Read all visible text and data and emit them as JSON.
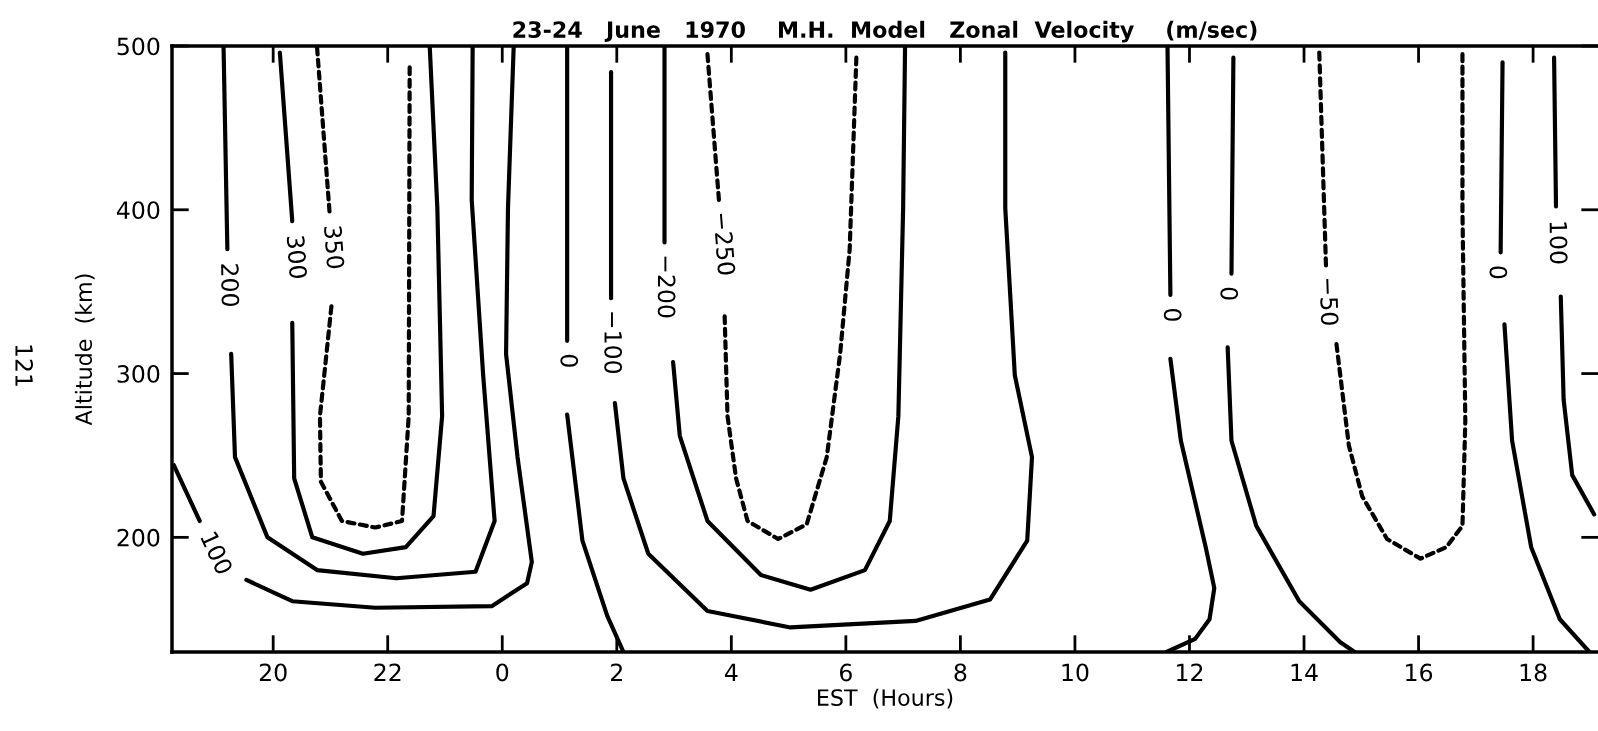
{
  "chart_data": {
    "type": "line",
    "title": "23-24   June   1970    M.H.  Model   Zonal  Velocity    (m/sec)",
    "xlabel": "EST  (Hours)",
    "ylabel": "Altitude  (km)",
    "xlim": [
      "1970-06-23T18:14",
      "1970-06-24T19:08"
    ],
    "ylim": [
      130,
      500
    ],
    "xticks": [
      {
        "value": "1970-06-23T20:00",
        "label": "20"
      },
      {
        "value": "1970-06-23T22:00",
        "label": "22"
      },
      {
        "value": "1970-06-24T00:00",
        "label": "0"
      },
      {
        "value": "1970-06-24T02:00",
        "label": "2"
      },
      {
        "value": "1970-06-24T04:00",
        "label": "4"
      },
      {
        "value": "1970-06-24T06:00",
        "label": "6"
      },
      {
        "value": "1970-06-24T08:00",
        "label": "8"
      },
      {
        "value": "1970-06-24T10:00",
        "label": "10"
      },
      {
        "value": "1970-06-24T12:00",
        "label": "12"
      },
      {
        "value": "1970-06-24T14:00",
        "label": "14"
      },
      {
        "value": "1970-06-24T16:00",
        "label": "16"
      },
      {
        "value": "1970-06-24T18:00",
        "label": "18"
      }
    ],
    "yticks": [
      200,
      300,
      400,
      500
    ],
    "grid": false,
    "series": [
      {
        "name": "100",
        "color": "#000000",
        "line_style": "solid",
        "x": [
          "1970-06-23T18:16",
          "1970-06-23T18:43"
        ],
        "values": [
          244,
          210
        ]
      },
      {
        "color": "#000000",
        "line_style": "solid",
        "x": [
          "1970-06-23T19:32",
          "1970-06-23T20:20",
          "1970-06-23T21:47",
          "1970-06-23T23:49",
          "1970-06-24T00:26",
          "1970-06-24T00:31",
          "1970-06-24T00:16",
          "1970-06-24T00:04",
          "1970-06-24T00:06",
          "1970-06-24T00:12"
        ],
        "values": [
          174,
          161,
          157,
          158,
          172,
          185,
          249,
          312,
          401,
          500
        ]
      },
      {
        "name": "200",
        "color": "#000000",
        "line_style": "solid",
        "x": [
          "1970-06-23T19:08",
          "1970-06-23T19:12"
        ],
        "values": [
          500,
          376
        ]
      },
      {
        "color": "#000000",
        "line_style": "solid",
        "x": [
          "1970-06-23T19:16",
          "1970-06-23T19:20",
          "1970-06-23T19:54",
          "1970-06-23T20:46",
          "1970-06-23T22:09",
          "1970-06-23T23:32",
          "1970-06-23T23:52",
          "1970-06-23T23:40",
          "1970-06-23T23:28",
          "1970-06-23T23:29"
        ],
        "values": [
          312,
          249,
          200,
          180,
          175,
          179,
          210,
          299,
          406,
          500
        ]
      },
      {
        "name": "300",
        "color": "#000000",
        "line_style": "solid",
        "x": [
          "1970-06-23T20:07",
          "1970-06-23T20:20"
        ],
        "values": [
          496,
          393
        ]
      },
      {
        "color": "#000000",
        "line_style": "solid",
        "x": [
          "1970-06-23T20:20",
          "1970-06-23T20:22",
          "1970-06-23T20:41",
          "1970-06-23T21:34",
          "1970-06-23T22:19",
          "1970-06-23T22:48",
          "1970-06-23T22:57",
          "1970-06-23T22:52",
          "1970-06-23T22:44"
        ],
        "values": [
          331,
          236,
          200,
          190,
          194,
          213,
          274,
          401,
          500
        ]
      },
      {
        "name": "350",
        "color": "#000000",
        "line_style": "dashed",
        "x": [
          "1970-06-23T20:46",
          "1970-06-23T20:59"
        ],
        "values": [
          499,
          399
        ]
      },
      {
        "color": "#000000",
        "line_style": "dashed",
        "x": [
          "1970-06-23T21:01",
          "1970-06-23T20:49",
          "1970-06-23T20:50",
          "1970-06-23T21:12",
          "1970-06-23T21:47",
          "1970-06-23T22:15",
          "1970-06-23T22:22",
          "1970-06-23T22:23"
        ],
        "values": [
          341,
          274,
          234,
          210,
          206,
          210,
          274,
          487
        ]
      },
      {
        "name": "0",
        "color": "#000000",
        "line_style": "solid",
        "x": [
          "1970-06-24T01:08",
          "1970-06-24T01:08"
        ],
        "values": [
          499,
          320
        ]
      },
      {
        "color": "#000000",
        "line_style": "solid",
        "x": [
          "1970-06-24T01:08",
          "1970-06-24T01:24",
          "1970-06-24T01:50",
          "1970-06-24T02:07"
        ],
        "values": [
          275,
          198,
          152,
          130
        ]
      },
      {
        "name": "−100",
        "color": "#000000",
        "line_style": "solid",
        "x": [
          "1970-06-24T01:54",
          "1970-06-24T01:54"
        ],
        "values": [
          484,
          346
        ]
      },
      {
        "color": "#000000",
        "line_style": "solid",
        "x": [
          "1970-06-24T01:58",
          "1970-06-24T02:07",
          "1970-06-24T02:33",
          "1970-06-24T03:35",
          "1970-06-24T05:02",
          "1970-06-24T07:13",
          "1970-06-24T08:31",
          "1970-06-24T09:10",
          "1970-06-24T09:15",
          "1970-06-24T08:57",
          "1970-06-24T08:47",
          "1970-06-24T08:47"
        ],
        "values": [
          282,
          236,
          190,
          155,
          145,
          149,
          162,
          198,
          249,
          299,
          401,
          496
        ]
      },
      {
        "name": "−200",
        "color": "#000000",
        "line_style": "solid",
        "x": [
          "1970-06-24T02:50",
          "1970-06-24T02:50"
        ],
        "values": [
          499,
          380
        ]
      },
      {
        "color": "#000000",
        "line_style": "solid",
        "x": [
          "1970-06-24T02:59",
          "1970-06-24T03:06",
          "1970-06-24T03:35",
          "1970-06-24T04:31",
          "1970-06-24T05:23",
          "1970-06-24T06:20",
          "1970-06-24T06:46",
          "1970-06-24T06:55",
          "1970-06-24T07:00",
          "1970-06-24T07:02"
        ],
        "values": [
          307,
          262,
          210,
          177,
          168,
          180,
          210,
          274,
          401,
          499
        ]
      },
      {
        "name": "−250",
        "color": "#000000",
        "line_style": "dashed",
        "x": [
          "1970-06-24T03:35",
          "1970-06-24T03:47"
        ],
        "values": [
          495,
          406
        ]
      },
      {
        "color": "#000000",
        "line_style": "dashed",
        "x": [
          "1970-06-24T03:53",
          "1970-06-24T03:56",
          "1970-06-24T04:05",
          "1970-06-24T04:17",
          "1970-06-24T04:49",
          "1970-06-24T05:19",
          "1970-06-24T05:40",
          "1970-06-24T05:54",
          "1970-06-24T06:04",
          "1970-06-24T06:11"
        ],
        "values": [
          335,
          274,
          236,
          210,
          199,
          208,
          249,
          312,
          376,
          493
        ]
      },
      {
        "name": "0",
        "color": "#000000",
        "line_style": "solid",
        "x": [
          "1970-06-24T11:37",
          "1970-06-24T11:40"
        ],
        "values": [
          499,
          348
        ]
      },
      {
        "color": "#000000",
        "line_style": "solid",
        "x": [
          "1970-06-24T11:40",
          "1970-06-24T11:51",
          "1970-06-24T12:17",
          "1970-06-24T12:26",
          "1970-06-24T12:21",
          "1970-06-24T12:06",
          "1970-06-24T11:36"
        ],
        "values": [
          309,
          259,
          194,
          169,
          150,
          138,
          130
        ]
      },
      {
        "name": "0",
        "color": "#000000",
        "line_style": "solid",
        "x": [
          "1970-06-24T12:46",
          "1970-06-24T12:44"
        ],
        "values": [
          493,
          361
        ]
      },
      {
        "color": "#000000",
        "line_style": "solid",
        "x": [
          "1970-06-24T12:40",
          "1970-06-24T12:44",
          "1970-06-24T13:10",
          "1970-06-24T13:55",
          "1970-06-24T14:38",
          "1970-06-24T14:53"
        ],
        "values": [
          316,
          259,
          207,
          161,
          136,
          130
        ]
      },
      {
        "name": "−50",
        "color": "#000000",
        "line_style": "dashed",
        "x": [
          "1970-06-24T14:16",
          "1970-06-24T14:23"
        ],
        "values": [
          496,
          366
        ]
      },
      {
        "color": "#000000",
        "line_style": "dashed",
        "x": [
          "1970-06-24T14:34",
          "1970-06-24T14:47",
          "1970-06-24T15:01",
          "1970-06-24T15:27",
          "1970-06-24T16:02",
          "1970-06-24T16:29",
          "1970-06-24T16:46",
          "1970-06-24T16:49",
          "1970-06-24T16:46",
          "1970-06-24T16:46"
        ],
        "values": [
          318,
          256,
          225,
          199,
          187,
          194,
          207,
          271,
          399,
          495
        ]
      },
      {
        "name": "0",
        "color": "#000000",
        "line_style": "solid",
        "x": [
          "1970-06-24T17:28",
          "1970-06-24T17:26"
        ],
        "values": [
          490,
          374
        ]
      },
      {
        "color": "#000000",
        "line_style": "solid",
        "x": [
          "1970-06-24T17:30",
          "1970-06-24T17:38",
          "1970-06-24T17:58",
          "1970-06-24T18:28",
          "1970-06-24T18:59"
        ],
        "values": [
          330,
          259,
          194,
          150,
          130
        ]
      },
      {
        "name": "100",
        "color": "#000000",
        "line_style": "solid",
        "x": [
          "1970-06-24T18:22",
          "1970-06-24T18:24"
        ],
        "values": [
          493,
          402
        ]
      },
      {
        "color": "#000000",
        "line_style": "solid",
        "x": [
          "1970-06-24T18:29",
          "1970-06-24T18:32",
          "1970-06-24T18:41",
          "1970-06-24T19:04"
        ],
        "values": [
          347,
          284,
          238,
          214
        ]
      }
    ],
    "annotations": [
      "121"
    ]
  }
}
